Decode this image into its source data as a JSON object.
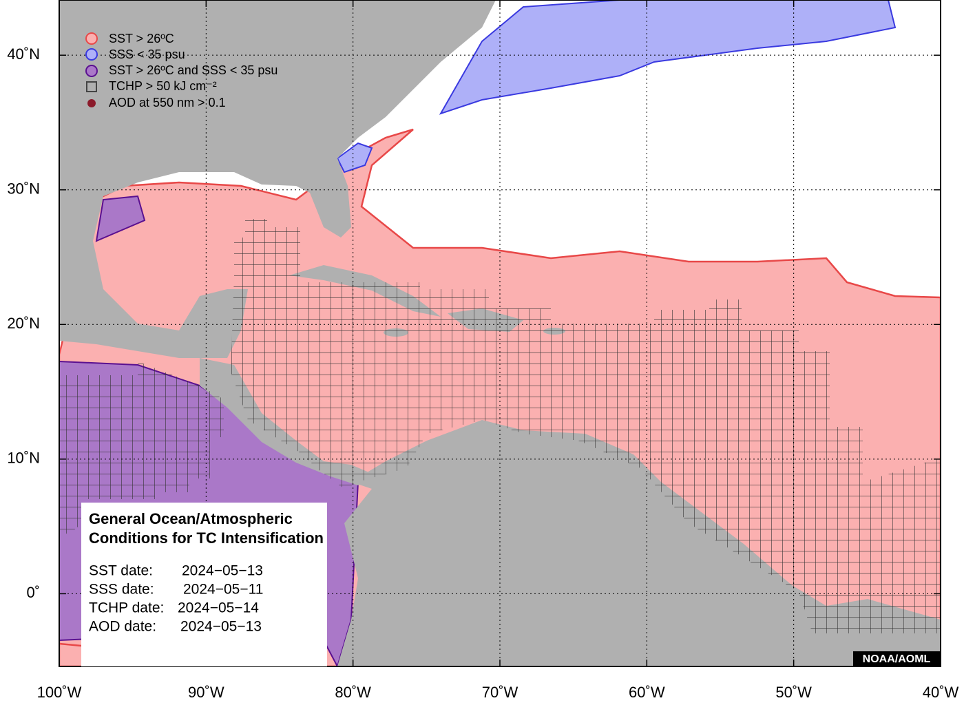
{
  "axes": {
    "xlim": [
      -100,
      -40
    ],
    "ylim": [
      -5.4,
      44.1
    ],
    "xticks": [
      {
        "value": -100,
        "label": "100˚W"
      },
      {
        "value": -90,
        "label": "90˚W"
      },
      {
        "value": -80,
        "label": "80˚W"
      },
      {
        "value": -70,
        "label": "70˚W"
      },
      {
        "value": -60,
        "label": "60˚W"
      },
      {
        "value": -50,
        "label": "50˚W"
      },
      {
        "value": -40,
        "label": "40˚W"
      }
    ],
    "yticks": [
      {
        "value": 0,
        "label": "0˚"
      },
      {
        "value": 10,
        "label": "10˚N"
      },
      {
        "value": 20,
        "label": "20˚N"
      },
      {
        "value": 30,
        "label": "30˚N"
      },
      {
        "value": 40,
        "label": "40˚N"
      }
    ],
    "grid": true
  },
  "legend": [
    "SST > 26ºC",
    "SSS < 35 psu",
    "SST > 26ºC and SSS < 35 psu",
    "TCHP > 50 kJ cm⁻²",
    "AOD at 550 nm > 0.1"
  ],
  "info": {
    "title": [
      "General Ocean/Atmospheric",
      "Conditions for TC Intensification"
    ],
    "dates": [
      {
        "label": "SST date:",
        "date": "2024−05−13"
      },
      {
        "label": "SSS date:",
        "date": "2024−05−11"
      },
      {
        "label": "TCHP date:",
        "date": "2024−05−14"
      },
      {
        "label": "AOD date:",
        "date": "2024−05−13"
      }
    ]
  },
  "credit": "NOAA/AOML"
}
